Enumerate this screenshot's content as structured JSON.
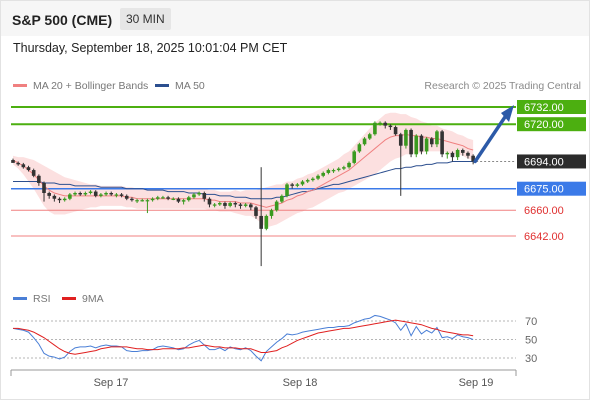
{
  "header": {
    "symbol": "S&P 500 (CME)",
    "interval": "30 MIN",
    "datetime": "Thursday, September 18, 2025 10:01:04 PM CET"
  },
  "legend": {
    "ma20_label": "MA 20 + Bollinger Bands",
    "ma50_label": "MA 50",
    "ma20_color": "#f08080",
    "ma50_color": "#2c4f8f"
  },
  "watermark": "Research © 2025 Trading Central",
  "rsi_legend": {
    "rsi_label": "RSI",
    "ma_label": "9MA",
    "rsi_color": "#4a7fd6",
    "ma_color": "#e02020"
  },
  "colors": {
    "candle_up": "#3a9a1f",
    "candle_down": "#333333",
    "resistance": "#4caf10",
    "support_pivot": "#3b7ae8",
    "support_red": "#f08080",
    "arrow": "#2c5aa8",
    "bands": "#fbd5d5"
  },
  "chart_data": {
    "type": "candlestick",
    "x_ticks": [
      "Sep 17",
      "Sep 18",
      "Sep 19"
    ],
    "price_labels": [
      {
        "value": 6732.0,
        "label": "6732.00",
        "kind": "resistance"
      },
      {
        "value": 6720.0,
        "label": "6720.00",
        "kind": "resistance"
      },
      {
        "value": 6694.0,
        "label": "6694.00",
        "kind": "last"
      },
      {
        "value": 6675.0,
        "label": "6675.00",
        "kind": "pivot"
      },
      {
        "value": 6660.0,
        "label": "6660.00",
        "kind": "support"
      },
      {
        "value": 6642.0,
        "label": "6642.00",
        "kind": "support"
      }
    ],
    "last_price": 6694.0,
    "target_price": 6732.0,
    "rsi_ticks": [
      70,
      50,
      30
    ],
    "rsi_ylim": [
      20,
      80
    ],
    "close": [
      6693,
      6692,
      6690,
      6688,
      6684,
      6679,
      6672,
      6670,
      6668,
      6667,
      6668,
      6671,
      6672,
      6671,
      6672,
      6673,
      6670,
      6671,
      6672,
      6671,
      6671,
      6670,
      6668,
      6667,
      6667,
      6667,
      6667,
      6668,
      6669,
      6669,
      6668,
      6668,
      6666,
      6667,
      6669,
      6671,
      6672,
      6668,
      6664,
      6664,
      6665,
      6663,
      6665,
      6664,
      6663,
      6664,
      6662,
      6656,
      6647,
      6656,
      6660,
      6666,
      6670,
      6678,
      6677,
      6678,
      6680,
      6681,
      6682,
      6684,
      6686,
      6688,
      6688,
      6689,
      6690,
      6693,
      6701,
      6706,
      6710,
      6713,
      6721,
      6721,
      6719,
      6718,
      6713,
      6705,
      6716,
      6699,
      6712,
      6701,
      6710,
      6706,
      6715,
      6699,
      6700,
      6697,
      6702,
      6700,
      6698,
      6694
    ],
    "open": [
      6695,
      6693,
      6692,
      6690,
      6688,
      6684,
      6679,
      6672,
      6670,
      6668,
      6667,
      6668,
      6671,
      6672,
      6671,
      6672,
      6673,
      6670,
      6671,
      6672,
      6671,
      6671,
      6670,
      6668,
      6667,
      6667,
      6667,
      6667,
      6668,
      6669,
      6669,
      6668,
      6668,
      6666,
      6667,
      6669,
      6671,
      6672,
      6668,
      6664,
      6664,
      6665,
      6663,
      6665,
      6664,
      6663,
      6664,
      6662,
      6656,
      6647,
      6656,
      6660,
      6666,
      6670,
      6678,
      6677,
      6678,
      6680,
      6681,
      6682,
      6684,
      6686,
      6688,
      6688,
      6689,
      6690,
      6693,
      6701,
      6706,
      6710,
      6713,
      6721,
      6721,
      6719,
      6718,
      6713,
      6705,
      6716,
      6699,
      6712,
      6701,
      6710,
      6706,
      6715,
      6699,
      6700,
      6697,
      6702,
      6700,
      6698
    ],
    "high": [
      6696,
      6694,
      6693,
      6691,
      6689,
      6685,
      6680,
      6673,
      6671,
      6669,
      6669,
      6672,
      6673,
      6673,
      6673,
      6674,
      6674,
      6672,
      6673,
      6673,
      6672,
      6672,
      6671,
      6669,
      6668,
      6668,
      6668,
      6669,
      6670,
      6670,
      6670,
      6669,
      6669,
      6668,
      6670,
      6672,
      6673,
      6673,
      6669,
      6665,
      6666,
      6666,
      6666,
      6666,
      6665,
      6665,
      6665,
      6663,
      6690,
      6657,
      6661,
      6667,
      6671,
      6679,
      6679,
      6679,
      6681,
      6682,
      6683,
      6685,
      6687,
      6689,
      6689,
      6690,
      6691,
      6694,
      6702,
      6707,
      6711,
      6714,
      6722,
      6722,
      6722,
      6720,
      6719,
      6714,
      6717,
      6717,
      6713,
      6713,
      6711,
      6711,
      6716,
      6716,
      6701,
      6701,
      6703,
      6703,
      6701,
      6699
    ],
    "low": [
      6694,
      6691,
      6689,
      6687,
      6683,
      6677,
      6666,
      6668,
      6666,
      6665,
      6666,
      6667,
      6670,
      6670,
      6670,
      6671,
      6669,
      6669,
      6670,
      6670,
      6669,
      6669,
      6667,
      6666,
      6665,
      6666,
      6658,
      6666,
      6667,
      6668,
      6667,
      6667,
      6665,
      6664,
      6666,
      6668,
      6670,
      6666,
      6662,
      6662,
      6663,
      6661,
      6662,
      6662,
      6661,
      6662,
      6660,
      6654,
      6621,
      6646,
      6654,
      6659,
      6665,
      6669,
      6675,
      6676,
      6677,
      6679,
      6680,
      6681,
      6683,
      6685,
      6686,
      6687,
      6688,
      6689,
      6692,
      6700,
      6705,
      6709,
      6712,
      6719,
      6717,
      6716,
      6712,
      6670,
      6703,
      6697,
      6697,
      6699,
      6699,
      6704,
      6704,
      6697,
      6696,
      6694,
      6695,
      6698,
      6696,
      6692
    ],
    "ma20": [
      6695,
      6693,
      6691,
      6688,
      6685,
      6681,
      6677,
      6674,
      6672,
      6671,
      6670,
      6670,
      6670,
      6670,
      6670,
      6670,
      6670,
      6670,
      6670,
      6670,
      6670,
      6670,
      6669,
      6669,
      6668,
      6668,
      6668,
      6668,
      6668,
      6668,
      6668,
      6668,
      6668,
      6668,
      6668,
      6668,
      6668,
      6668,
      6667,
      6667,
      6666,
      6666,
      6666,
      6666,
      6665,
      6665,
      6665,
      6664,
      6663,
      6662,
      6663,
      6664,
      6665,
      6667,
      6668,
      6670,
      6671,
      6673,
      6674,
      6676,
      6678,
      6680,
      6682,
      6684,
      6686,
      6688,
      6691,
      6694,
      6697,
      6700,
      6703,
      6706,
      6709,
      6711,
      6712,
      6712,
      6713,
      6712,
      6712,
      6711,
      6711,
      6710,
      6710,
      6709,
      6708,
      6707,
      6706,
      6705,
      6703,
      6702
    ],
    "ma50": [
      6680,
      6680,
      6680,
      6680,
      6680,
      6680,
      6679,
      6679,
      6679,
      6678,
      6678,
      6678,
      6677,
      6677,
      6677,
      6677,
      6677,
      6676,
      6676,
      6676,
      6676,
      6676,
      6675,
      6675,
      6675,
      6675,
      6674,
      6674,
      6674,
      6674,
      6673,
      6673,
      6673,
      6673,
      6672,
      6672,
      6672,
      6671,
      6671,
      6671,
      6670,
      6670,
      6670,
      6669,
      6669,
      6669,
      6668,
      6668,
      6668,
      6668,
      6668,
      6669,
      6669,
      6670,
      6671,
      6672,
      6673,
      6673,
      6674,
      6675,
      6676,
      6677,
      6678,
      6678,
      6679,
      6680,
      6681,
      6682,
      6683,
      6684,
      6685,
      6686,
      6687,
      6688,
      6689,
      6689,
      6690,
      6690,
      6691,
      6691,
      6692,
      6692,
      6693,
      6693,
      6693,
      6694,
      6694,
      6694,
      6694,
      6694
    ],
    "bb_width": [
      3,
      4,
      6,
      8,
      10,
      12,
      14,
      15,
      15,
      14,
      13,
      12,
      11,
      10,
      9,
      8,
      8,
      7,
      7,
      7,
      7,
      7,
      7,
      7,
      7,
      7,
      7,
      7,
      7,
      7,
      7,
      7,
      7,
      7,
      7,
      7,
      7,
      7,
      7,
      7,
      7,
      7,
      7,
      8,
      8,
      9,
      9,
      10,
      12,
      14,
      14,
      14,
      13,
      13,
      12,
      12,
      12,
      12,
      12,
      12,
      12,
      12,
      12,
      12,
      13,
      13,
      14,
      15,
      16,
      17,
      18,
      18,
      18,
      17,
      16,
      15,
      14,
      13,
      12,
      11,
      10,
      9,
      9,
      8,
      8,
      8,
      7,
      7,
      7,
      7
    ],
    "rsi": [
      62,
      61,
      60,
      58,
      52,
      45,
      35,
      32,
      31,
      29,
      31,
      37,
      41,
      42,
      42,
      43,
      41,
      43,
      44,
      43,
      43,
      42,
      38,
      37,
      37,
      38,
      38,
      39,
      42,
      43,
      42,
      41,
      39,
      40,
      44,
      47,
      49,
      44,
      39,
      39,
      41,
      38,
      42,
      40,
      39,
      41,
      38,
      32,
      27,
      37,
      42,
      47,
      51,
      56,
      55,
      56,
      58,
      59,
      60,
      61,
      62,
      63,
      63,
      64,
      64,
      65,
      68,
      70,
      72,
      73,
      76,
      75,
      73,
      71,
      68,
      60,
      67,
      54,
      64,
      56,
      60,
      57,
      63,
      52,
      53,
      51,
      55,
      53,
      52,
      50
    ],
    "rsi_ma": [
      62,
      62,
      61,
      60,
      58,
      55,
      52,
      48,
      44,
      40,
      37,
      35,
      34,
      35,
      36,
      37,
      38,
      40,
      41,
      42,
      42,
      42,
      42,
      41,
      40,
      40,
      39,
      39,
      39,
      40,
      40,
      40,
      40,
      41,
      41,
      42,
      43,
      44,
      43,
      42,
      42,
      41,
      41,
      41,
      40,
      40,
      40,
      38,
      36,
      36,
      37,
      38,
      41,
      43,
      46,
      49,
      51,
      53,
      55,
      57,
      58,
      59,
      60,
      61,
      62,
      62,
      63,
      64,
      65,
      66,
      67,
      68,
      69,
      70,
      71,
      70,
      69,
      68,
      67,
      66,
      64,
      62,
      61,
      59,
      58,
      57,
      56,
      55,
      55,
      54
    ]
  }
}
